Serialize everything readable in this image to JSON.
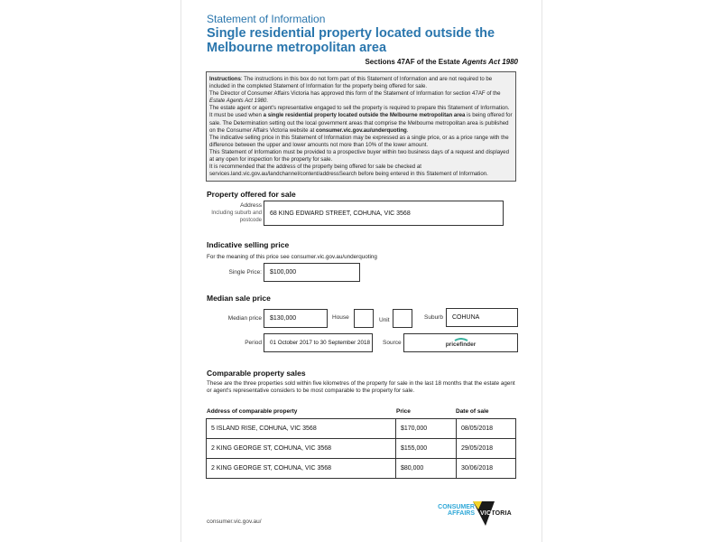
{
  "header": {
    "subtitle": "Statement of Information",
    "title": "Single residential property located outside the Melbourne metropolitan area",
    "sections_prefix": "Sections 47AF of the Estate ",
    "sections_act": "Agents Act 1980"
  },
  "instructions": {
    "label": "Instructions",
    "p1": ": The instructions in this box do not form part of this Statement of Information and are not required to be included in the completed Statement of Information for the property being offered for sale.",
    "p2": "The Director of Consumer Affairs Victoria has approved this form of the Statement of Information for section 47AF of the ",
    "p2_act": "Estate Agents Act 1980",
    "p3a": "The estate agent or agent's representative engaged to sell the property is required to prepare this Statement of Information. It must be used when ",
    "p3b": "a single residential property located outside the Melbourne metropolitan area",
    "p3c": " is being offered for sale. The Determination setting out the local government areas that comprise the Melbourne metropolitan area is published on the Consumer Affairs Victoria website at ",
    "p3d": "consumer.vic.gov.au/underquoting",
    "p4": "The indicative selling price in this Statement of Information may be expressed as a single price, or as a price range with the difference between the upper and lower amounts not more than 10% of the lower amount.",
    "p5": "This Statement of Information must be provided to a prospective buyer within two business days of a request and displayed at any open for inspection for the property for sale.",
    "p6": "It is recommended that the address of the property being offered for sale be checked at services.land.vic.gov.au/landchannel/content/addressSearch before being entered in this Statement of Information."
  },
  "property": {
    "heading": "Property offered for sale",
    "address_label": "Address",
    "address_sublabel": "Including suburb and postcode",
    "address": "68 KING EDWARD STREET, COHUNA, VIC 3568"
  },
  "indicative": {
    "heading": "Indicative selling price",
    "note": "For the meaning of this price see consumer.vic.gov.au/underquoting",
    "single_label": "Single Price:",
    "single_value": "$100,000"
  },
  "median": {
    "heading": "Median sale price",
    "median_label": "Median price",
    "median_value": "$130,000",
    "house_label": "House",
    "unit_label": "Unit",
    "suburb_label": "Suburb",
    "suburb_value": "COHUNA",
    "period_label": "Period",
    "period_value": "01 October 2017 to 30 September 2018",
    "source_label": "Source",
    "source_logo": "pricefinder"
  },
  "comparable": {
    "heading": "Comparable property sales",
    "note": "These are the three properties sold within five kilometres of the property for sale in the last 18 months that the estate agent or agent's representative considers to be most comparable to the property for sale.",
    "columns": [
      "Address of comparable property",
      "Price",
      "Date of sale"
    ],
    "rows": [
      [
        "5 ISLAND RISE, COHUNA, VIC 3568",
        "$170,000",
        "08/05/2018"
      ],
      [
        "2 KING GEORGE ST, COHUNA, VIC 3568",
        "$155,000",
        "29/05/2018"
      ],
      [
        "2 KING GEORGE ST, COHUNA, VIC 3568",
        "$80,000",
        "30/06/2018"
      ]
    ]
  },
  "footer": {
    "url": "consumer.vic.gov.au/",
    "logo_line1": "CONSUMER",
    "logo_line2": "AFFAIRS",
    "logo_line3": "VICTORIA"
  },
  "colors": {
    "title": "#2a76ad",
    "logo_blue": "#2fa8d8",
    "logo_yellow": "#f2d32a"
  }
}
